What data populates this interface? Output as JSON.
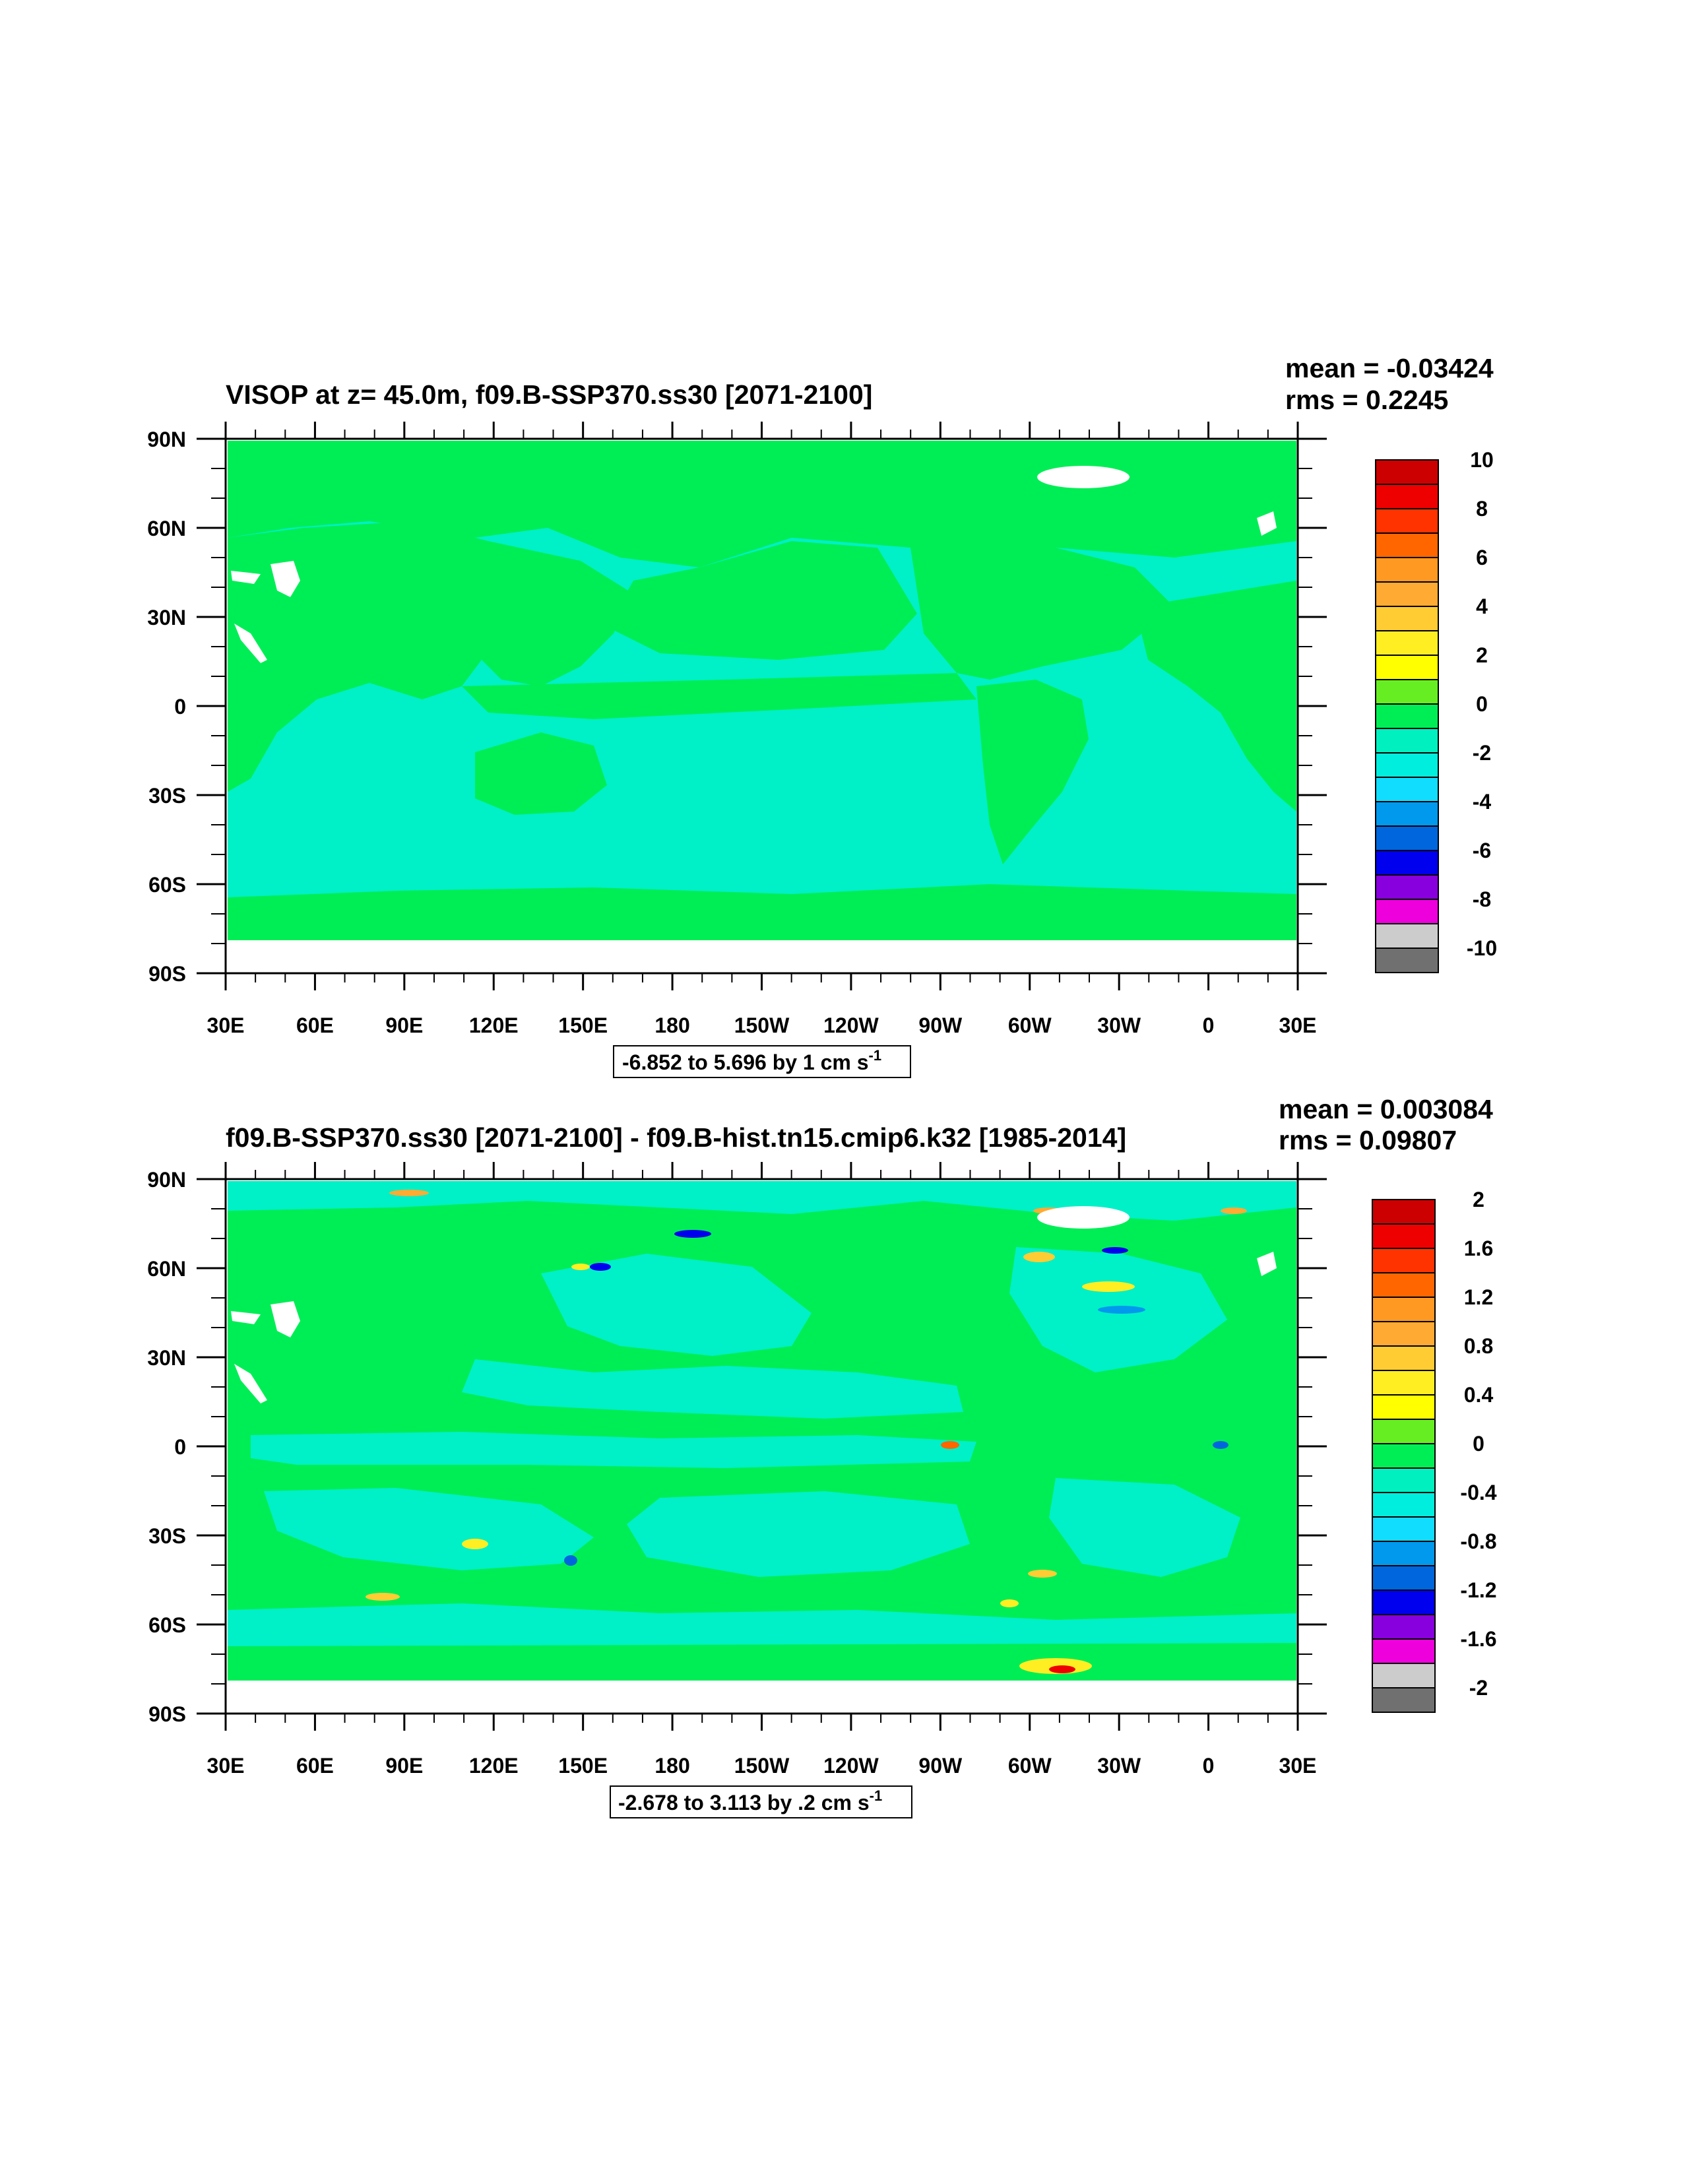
{
  "chart_data": [
    {
      "type": "heatmap",
      "title": "VISOP at z=  45.0m, f09.B-SSP370.ss30 [2071-2100]",
      "mean_label": "mean = -0.03424",
      "rms_label": "rms = 0.2245",
      "range_label": "-6.852 to 5.696 by 1 cm s",
      "range_unit_sup": "-1",
      "x_ticks": [
        "30E",
        "60E",
        "90E",
        "120E",
        "150E",
        "180",
        "150W",
        "120W",
        "90W",
        "60W",
        "30W",
        "0",
        "30E"
      ],
      "y_ticks": [
        "90N",
        "60N",
        "30N",
        "0",
        "30S",
        "60S",
        "90S"
      ],
      "xlim": [
        30,
        390
      ],
      "ylim": [
        -90,
        90
      ],
      "colorbar_levels": [
        -10,
        -9,
        -8,
        -7,
        -6,
        -5,
        -4,
        -3,
        -2,
        -1,
        0,
        1,
        2,
        3,
        4,
        5,
        6,
        7,
        8,
        9,
        10
      ],
      "colorbar_labels": [
        "10",
        "8",
        "6",
        "4",
        "2",
        "0",
        "-2",
        "-4",
        "-6",
        "-8",
        "-10"
      ],
      "colorbar_colors": [
        "#cc0000",
        "#ee0000",
        "#ff3300",
        "#ff6600",
        "#ff9922",
        "#ffaa33",
        "#ffcc33",
        "#ffee22",
        "#ffff00",
        "#66ee22",
        "#00ee55",
        "#00f0c0",
        "#00eedd",
        "#11ddff",
        "#0099ee",
        "#0066dd",
        "#0000ee",
        "#8800dd",
        "#ee00dd",
        "#cccccc",
        "#707070"
      ]
    },
    {
      "type": "heatmap",
      "title": "f09.B-SSP370.ss30 [2071-2100] - f09.B-hist.tn15.cmip6.k32 [1985-2014]",
      "mean_label": "mean = 0.003084",
      "rms_label": "rms = 0.09807",
      "range_label": "-2.678 to 3.113 by .2 cm s",
      "range_unit_sup": "-1",
      "x_ticks": [
        "30E",
        "60E",
        "90E",
        "120E",
        "150E",
        "180",
        "150W",
        "120W",
        "90W",
        "60W",
        "30W",
        "0",
        "30E"
      ],
      "y_ticks": [
        "90N",
        "60N",
        "30N",
        "0",
        "30S",
        "60S",
        "90S"
      ],
      "xlim": [
        30,
        390
      ],
      "ylim": [
        -90,
        90
      ],
      "colorbar_levels": [
        -2,
        -1.8,
        -1.6,
        -1.4,
        -1.2,
        -1,
        -0.8,
        -0.6,
        -0.4,
        -0.2,
        0,
        0.2,
        0.4,
        0.6,
        0.8,
        1,
        1.2,
        1.4,
        1.6,
        1.8,
        2
      ],
      "colorbar_labels": [
        "2",
        "1.6",
        "1.2",
        "0.8",
        "0.4",
        "0",
        "-0.4",
        "-0.8",
        "-1.2",
        "-1.6",
        "-2"
      ],
      "colorbar_colors": [
        "#cc0000",
        "#ee0000",
        "#ff3300",
        "#ff6600",
        "#ff9922",
        "#ffaa33",
        "#ffcc33",
        "#ffee22",
        "#ffff00",
        "#66ee22",
        "#00ee55",
        "#00f0c0",
        "#00eedd",
        "#11ddff",
        "#0099ee",
        "#0066dd",
        "#0000ee",
        "#8800dd",
        "#ee00dd",
        "#cccccc",
        "#707070"
      ]
    }
  ],
  "colors": {
    "ocean_near_zero_negative": "#00f0c8",
    "land_and_near_zero_positive": "#00ee55",
    "land_mask": "#ffffff",
    "axis": "#000000"
  }
}
